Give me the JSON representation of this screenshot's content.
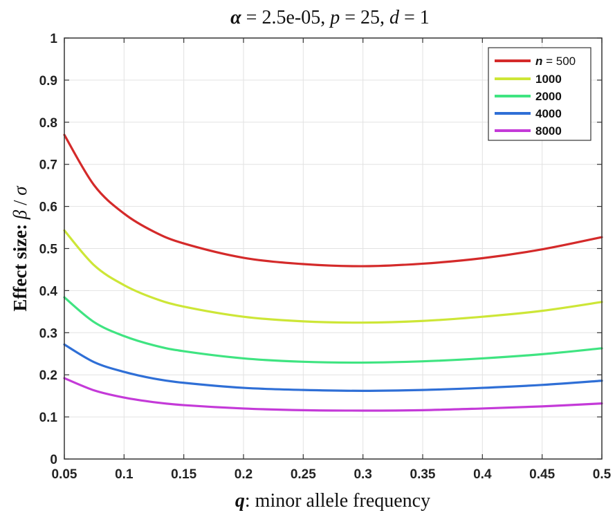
{
  "colors": {
    "n500": "#d42a2a",
    "n1000": "#cde637",
    "n2000": "#3fe481",
    "n4000": "#2f6fd6",
    "n8000": "#c43ad8",
    "grid": "#e2e2e2",
    "axis": "#333333"
  },
  "title_parts": {
    "alpha_symbol": "α",
    "alpha_value": " = 2.5e-05, ",
    "p_symbol": "p",
    "p_value": " = 25, ",
    "d_symbol": "d",
    "d_value": " = 1"
  },
  "xlabel_parts": {
    "symbol": "q",
    "text": ": minor allele frequency"
  },
  "ylabel_parts": {
    "text": "Effect size: ",
    "beta": "β",
    "slash": " / ",
    "sigma": "σ"
  },
  "legend_parts": {
    "n_symbol": "n",
    "n_eq": " = 500"
  },
  "chart_data": {
    "type": "line",
    "xlim": [
      0.05,
      0.5
    ],
    "ylim": [
      0,
      1
    ],
    "grid": true,
    "legend_position": "top-right",
    "x_ticks": [
      "0.05",
      "0.1",
      "0.15",
      "0.2",
      "0.25",
      "0.3",
      "0.35",
      "0.4",
      "0.45",
      "0.5"
    ],
    "y_ticks": [
      "0",
      "0.1",
      "0.2",
      "0.3",
      "0.4",
      "0.5",
      "0.6",
      "0.7",
      "0.8",
      "0.9",
      "1"
    ],
    "x": [
      0.05,
      0.075,
      0.1,
      0.125,
      0.15,
      0.2,
      0.25,
      0.3,
      0.35,
      0.4,
      0.45,
      0.5
    ],
    "series": [
      {
        "name": "500",
        "color": "#d42a2a",
        "values": [
          0.77,
          0.65,
          0.583,
          0.54,
          0.512,
          0.478,
          0.463,
          0.458,
          0.464,
          0.477,
          0.498,
          0.527
        ]
      },
      {
        "name": "1000",
        "color": "#cde637",
        "values": [
          0.543,
          0.46,
          0.413,
          0.382,
          0.362,
          0.338,
          0.327,
          0.324,
          0.328,
          0.338,
          0.352,
          0.373
        ]
      },
      {
        "name": "2000",
        "color": "#3fe481",
        "values": [
          0.384,
          0.325,
          0.292,
          0.27,
          0.256,
          0.239,
          0.231,
          0.229,
          0.232,
          0.239,
          0.249,
          0.263
        ]
      },
      {
        "name": "4000",
        "color": "#2f6fd6",
        "values": [
          0.272,
          0.23,
          0.207,
          0.191,
          0.181,
          0.169,
          0.164,
          0.162,
          0.164,
          0.169,
          0.176,
          0.186
        ]
      },
      {
        "name": "8000",
        "color": "#c43ad8",
        "values": [
          0.192,
          0.163,
          0.146,
          0.135,
          0.128,
          0.12,
          0.116,
          0.115,
          0.116,
          0.12,
          0.125,
          0.132
        ]
      }
    ]
  }
}
